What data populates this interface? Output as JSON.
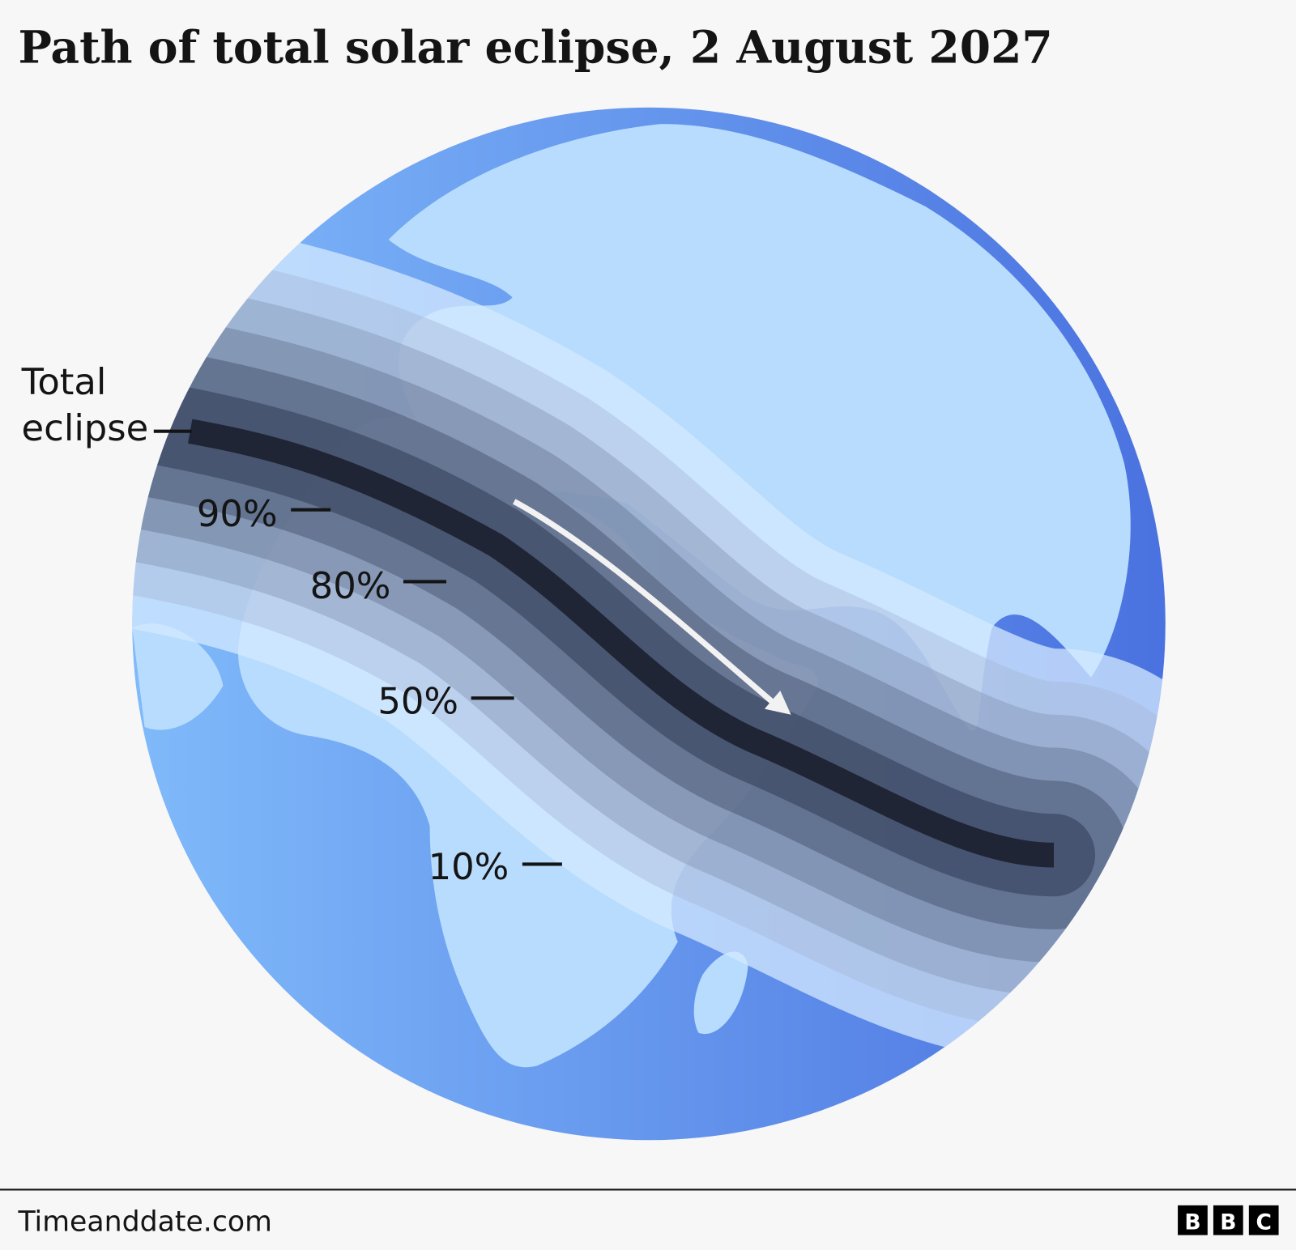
{
  "header": {
    "title": "Path of total solar eclipse, 2 August 2027"
  },
  "labels": {
    "total": "Total eclipse",
    "p90": "90%",
    "p80": "80%",
    "p50": "50%",
    "p10": "10%"
  },
  "footer": {
    "source": "Timeanddate.com",
    "logo": [
      "B",
      "B",
      "C"
    ]
  }
}
